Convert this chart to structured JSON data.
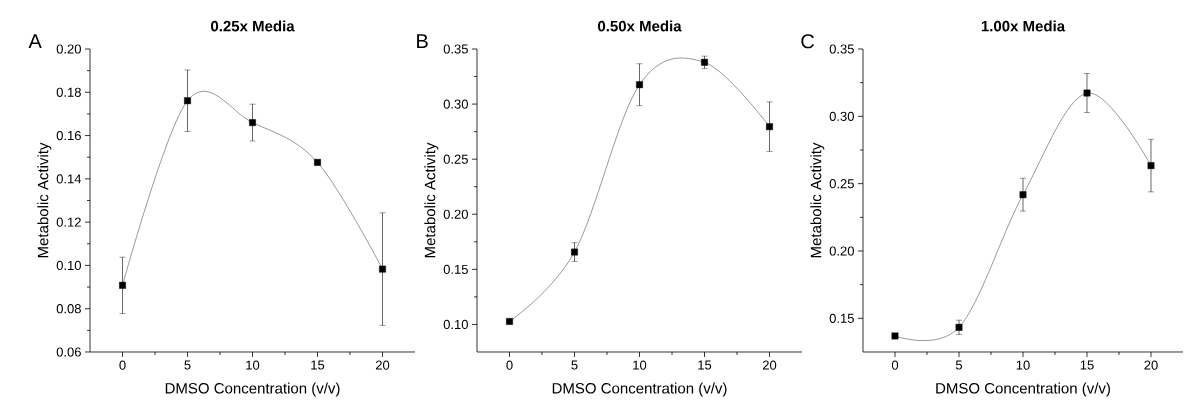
{
  "chart_data": [
    {
      "type": "line",
      "title": "0.25x Media",
      "xlabel": "DMSO Concentration (v/v)",
      "ylabel": "Metabolic Activity",
      "annotations": [
        "A"
      ],
      "x": [
        0,
        5,
        10,
        15,
        20
      ],
      "series": [
        {
          "color": "#000000",
          "values": [
            0.0908,
            0.1761,
            0.166,
            0.1476,
            0.0983
          ],
          "errors": [
            0.013,
            0.0142,
            0.0085,
            null,
            0.026
          ]
        }
      ],
      "xlim": [
        -2.5,
        22.5
      ],
      "ylim": [
        0.06,
        0.2
      ],
      "xticks": [
        0,
        5,
        10,
        15,
        20
      ],
      "yticks": [
        {
          "value": 0.06,
          "label": "0.06"
        },
        {
          "value": 0.08,
          "label": "0.08"
        },
        {
          "value": 0.1,
          "label": "0.10"
        },
        {
          "value": 0.12,
          "label": "0.12"
        },
        {
          "value": 0.14,
          "label": "0.14"
        },
        {
          "value": 0.16,
          "label": "0.16"
        },
        {
          "value": 0.18,
          "label": "0.18"
        },
        {
          "value": 0.2,
          "label": "0.20"
        }
      ],
      "marker": "square",
      "line_style": "solid"
    },
    {
      "type": "line",
      "title": "0.50x Media",
      "xlabel": "DMSO Concentration (v/v)",
      "ylabel": "Metabolic Activity",
      "annotations": [
        "B"
      ],
      "x": [
        0,
        5,
        10,
        15,
        20
      ],
      "series": [
        {
          "color": "#000000",
          "values": [
            0.1027,
            0.1657,
            0.3176,
            0.3379,
            0.2795
          ],
          "errors": [
            null,
            0.0085,
            0.019,
            0.0056,
            0.0225
          ]
        }
      ],
      "xlim": [
        -2.5,
        22.5
      ],
      "ylim": [
        0.075,
        0.35
      ],
      "xticks": [
        0,
        5,
        10,
        15,
        20
      ],
      "yticks": [
        {
          "value": 0.1,
          "label": "0.10"
        },
        {
          "value": 0.15,
          "label": "0.15"
        },
        {
          "value": 0.2,
          "label": "0.20"
        },
        {
          "value": 0.25,
          "label": "0.25"
        },
        {
          "value": 0.3,
          "label": "0.30"
        },
        {
          "value": 0.35,
          "label": "0.35"
        }
      ],
      "marker": "square",
      "line_style": "solid"
    },
    {
      "type": "line",
      "title": "1.00x Media",
      "xlabel": "DMSO Concentration (v/v)",
      "ylabel": "Metabolic Activity",
      "annotations": [
        "C"
      ],
      "x": [
        0,
        5,
        10,
        15,
        20
      ],
      "series": [
        {
          "color": "#000000",
          "values": [
            0.1369,
            0.1433,
            0.2418,
            0.3173,
            0.2634
          ],
          "errors": [
            null,
            0.0053,
            0.0122,
            0.0145,
            0.0195
          ]
        }
      ],
      "xlim": [
        -2.5,
        22.5
      ],
      "ylim": [
        0.125,
        0.35
      ],
      "xticks": [
        0,
        5,
        10,
        15,
        20
      ],
      "yticks": [
        {
          "value": 0.15,
          "label": "0.15"
        },
        {
          "value": 0.2,
          "label": "0.20"
        },
        {
          "value": 0.25,
          "label": "0.25"
        },
        {
          "value": 0.3,
          "label": "0.30"
        },
        {
          "value": 0.35,
          "label": "0.35"
        }
      ],
      "marker": "square",
      "line_style": "solid"
    }
  ]
}
